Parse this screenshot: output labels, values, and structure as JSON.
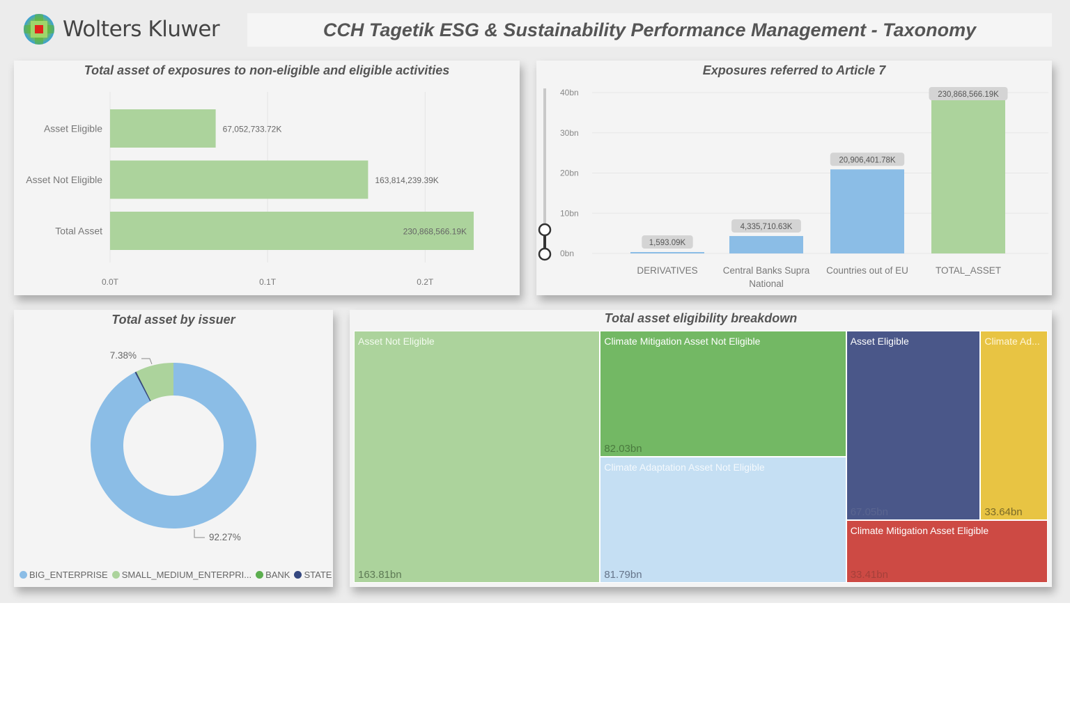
{
  "header": {
    "brand": "Wolters Kluwer",
    "title": "CCH Tagetik ESG & Sustainability Performance Management - Taxonomy"
  },
  "colors": {
    "light_green": "#acd39c",
    "green": "#73b864",
    "light_blue": "#8bbde6",
    "pale_blue": "#c5dff3",
    "navy": "#4a5789",
    "yellow": "#e8c443",
    "red": "#cd4a44",
    "bank_green": "#5cae4f",
    "state_navy": "#34477f"
  },
  "chart_data": [
    {
      "id": "eligibility_bars",
      "type": "bar",
      "orientation": "horizontal",
      "title": "Total asset of exposures to non-eligible and eligible activities",
      "categories": [
        "Asset Eligible",
        "Asset Not Eligible",
        "Total Asset"
      ],
      "values": [
        67052733720,
        163814239390,
        230868566190
      ],
      "data_labels": [
        "67,052,733.72K",
        "163,814,239.39K",
        "230,868,566.19K"
      ],
      "xticks": [
        "0.0T",
        "0.1T",
        "0.2T"
      ],
      "xtick_values": [
        0,
        100000000000,
        200000000000
      ],
      "xlim": [
        0,
        230868566190
      ],
      "grid": true
    },
    {
      "id": "article7_columns",
      "type": "bar",
      "orientation": "vertical",
      "title": "Exposures referred to Article 7",
      "categories": [
        "DERIVATIVES",
        "Central Banks Supra National",
        "Countries out of EU",
        "TOTAL_ASSET"
      ],
      "category_lines": [
        [
          "DERIVATIVES"
        ],
        [
          "Central Banks Supra",
          "National"
        ],
        [
          "Countries out of EU"
        ],
        [
          "TOTAL_ASSET"
        ]
      ],
      "values": [
        1593090,
        4335710630,
        20906401780,
        230868566190
      ],
      "data_labels": [
        "1,593.09K",
        "4,335,710.63K",
        "20,906,401.78K",
        "230,868,566.19K"
      ],
      "bar_colors": [
        "light_blue",
        "light_blue",
        "light_blue",
        "light_green"
      ],
      "yticks": [
        "0bn",
        "10bn",
        "20bn",
        "30bn",
        "40bn"
      ],
      "ytick_values": [
        0,
        10000000000,
        20000000000,
        30000000000,
        40000000000
      ],
      "ylim": [
        0,
        40000000000
      ],
      "grid": true,
      "zoom_slider": true
    },
    {
      "id": "issuer_donut",
      "type": "pie",
      "donut": true,
      "title": "Total asset by issuer",
      "series": [
        {
          "name": "BIG_ENTERPRISE",
          "value": 92.27,
          "color": "light_blue",
          "label": "92.27%"
        },
        {
          "name": "SMALL_MEDIUM_ENTERPRISE",
          "value": 7.38,
          "color": "light_green",
          "label": "7.38%"
        },
        {
          "name": "BANK",
          "value": 0.05,
          "color": "bank_green",
          "label": ""
        },
        {
          "name": "STATE",
          "value": 0.3,
          "color": "state_navy",
          "label": ""
        }
      ],
      "legend": [
        "BIG_ENTERPRISE",
        "SMALL_MEDIUM_ENTERPRI...",
        "BANK",
        "STATE"
      ],
      "legend_position": "bottom"
    },
    {
      "id": "eligibility_treemap",
      "type": "treemap",
      "title": "Total asset eligibility breakdown",
      "nodes": [
        {
          "name": "Asset Not Eligible",
          "value": 163.81,
          "label": "163.81bn",
          "color": "light_green"
        },
        {
          "name": "Climate Mitigation Asset Not Eligible",
          "value": 82.03,
          "label": "82.03bn",
          "color": "green"
        },
        {
          "name": "Climate Adaptation Asset Not Eligible",
          "value": 81.79,
          "label": "81.79bn",
          "color": "pale_blue"
        },
        {
          "name": "Asset Eligible",
          "value": 67.05,
          "label": "67.05bn",
          "color": "navy"
        },
        {
          "name": "Climate Ad...",
          "value": 33.64,
          "label": "33.64bn",
          "color": "yellow"
        },
        {
          "name": "Climate Mitigation Asset Eligible",
          "value": 33.41,
          "label": "33.41bn",
          "color": "red"
        }
      ]
    }
  ]
}
